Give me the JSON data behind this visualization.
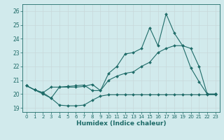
{
  "xlabel": "Humidex (Indice chaleur)",
  "xlim": [
    -0.5,
    23.5
  ],
  "ylim": [
    18.7,
    26.5
  ],
  "yticks": [
    19,
    20,
    21,
    22,
    23,
    24,
    25,
    26
  ],
  "xticks": [
    0,
    1,
    2,
    3,
    4,
    5,
    6,
    7,
    8,
    9,
    10,
    11,
    12,
    13,
    14,
    15,
    16,
    17,
    18,
    19,
    20,
    21,
    22,
    23
  ],
  "bg_color": "#d1eaec",
  "line_color": "#1e6b68",
  "grid_color": "#c0dfe2",
  "line1_y": [
    20.6,
    20.3,
    20.0,
    19.7,
    19.2,
    19.15,
    19.15,
    19.2,
    19.55,
    19.85,
    19.95,
    19.95,
    19.95,
    19.95,
    19.95,
    19.95,
    19.95,
    19.95,
    19.95,
    19.95,
    19.95,
    19.95,
    19.95,
    19.95
  ],
  "line2_y": [
    20.6,
    20.3,
    20.1,
    20.5,
    20.5,
    20.5,
    20.5,
    20.55,
    20.7,
    20.25,
    21.0,
    21.3,
    21.5,
    21.6,
    22.0,
    22.3,
    23.0,
    23.3,
    23.5,
    23.5,
    23.3,
    22.0,
    20.0,
    20.0
  ],
  "line3_y": [
    20.6,
    20.3,
    20.1,
    19.7,
    20.5,
    20.55,
    20.6,
    20.65,
    20.25,
    20.25,
    21.5,
    22.0,
    22.9,
    23.0,
    23.3,
    24.8,
    23.5,
    25.8,
    24.4,
    23.5,
    21.9,
    20.9,
    20.0,
    20.0
  ]
}
